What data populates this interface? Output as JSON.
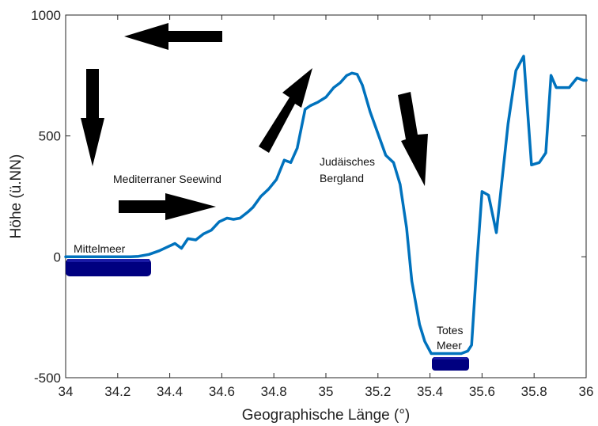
{
  "chart_data": {
    "type": "line",
    "title": "",
    "xlabel": "Geographische Länge (°)",
    "ylabel": "Höhe (ü.NN)",
    "xlim": [
      34,
      36
    ],
    "ylim": [
      -500,
      1000
    ],
    "grid": false,
    "x_ticks": [
      "34",
      "34.2",
      "34.4",
      "34.6",
      "34.8",
      "35",
      "35.2",
      "35.4",
      "35.6",
      "35.8",
      "36"
    ],
    "y_ticks": [
      "-500",
      "0",
      "500",
      "1000"
    ],
    "line_color": "#0072BD",
    "series": [
      {
        "x": [
          34.0,
          34.05,
          34.1,
          34.15,
          34.2,
          34.25,
          34.28,
          34.32,
          34.36,
          34.39,
          34.42,
          34.445,
          34.47,
          34.5,
          34.53,
          34.56,
          34.59,
          34.62,
          34.645,
          34.67,
          34.7,
          34.72,
          34.75,
          34.78,
          34.81,
          34.84,
          34.865,
          34.89,
          34.92,
          34.94,
          34.97,
          35.0,
          35.03,
          35.055,
          35.08,
          35.1,
          35.12,
          35.14,
          35.17,
          35.2,
          35.23,
          35.26,
          35.285,
          35.31,
          35.33,
          35.36,
          35.38,
          35.405,
          35.43,
          35.46,
          35.49,
          35.52,
          35.545,
          35.56,
          35.58,
          35.6,
          35.625,
          35.655,
          35.675,
          35.7,
          35.73,
          35.76,
          35.79,
          35.82,
          35.845,
          35.865,
          35.885,
          35.91,
          35.935,
          35.965,
          35.99,
          36.0
        ],
        "y": [
          0,
          0,
          0,
          0,
          0,
          0,
          2,
          10,
          25,
          40,
          55,
          35,
          75,
          70,
          95,
          110,
          145,
          160,
          155,
          160,
          185,
          205,
          250,
          280,
          320,
          400,
          390,
          450,
          610,
          625,
          640,
          660,
          700,
          720,
          750,
          760,
          755,
          710,
          600,
          510,
          420,
          390,
          300,
          120,
          -100,
          -280,
          -350,
          -400,
          -400,
          -400,
          -400,
          -400,
          -390,
          -365,
          -30,
          270,
          255,
          100,
          300,
          550,
          770,
          830,
          380,
          390,
          430,
          750,
          700,
          700,
          700,
          740,
          730,
          730
        ]
      }
    ],
    "annotations": [
      {
        "text": "Mittelmeer"
      },
      {
        "text": "Mediterraner Seewind"
      },
      {
        "text": "Judäisches"
      },
      {
        "text": "Bergland"
      },
      {
        "text": "Totes"
      },
      {
        "text": "Meer"
      }
    ],
    "colors": {
      "water": "#000080",
      "arrow": "#000000"
    }
  }
}
